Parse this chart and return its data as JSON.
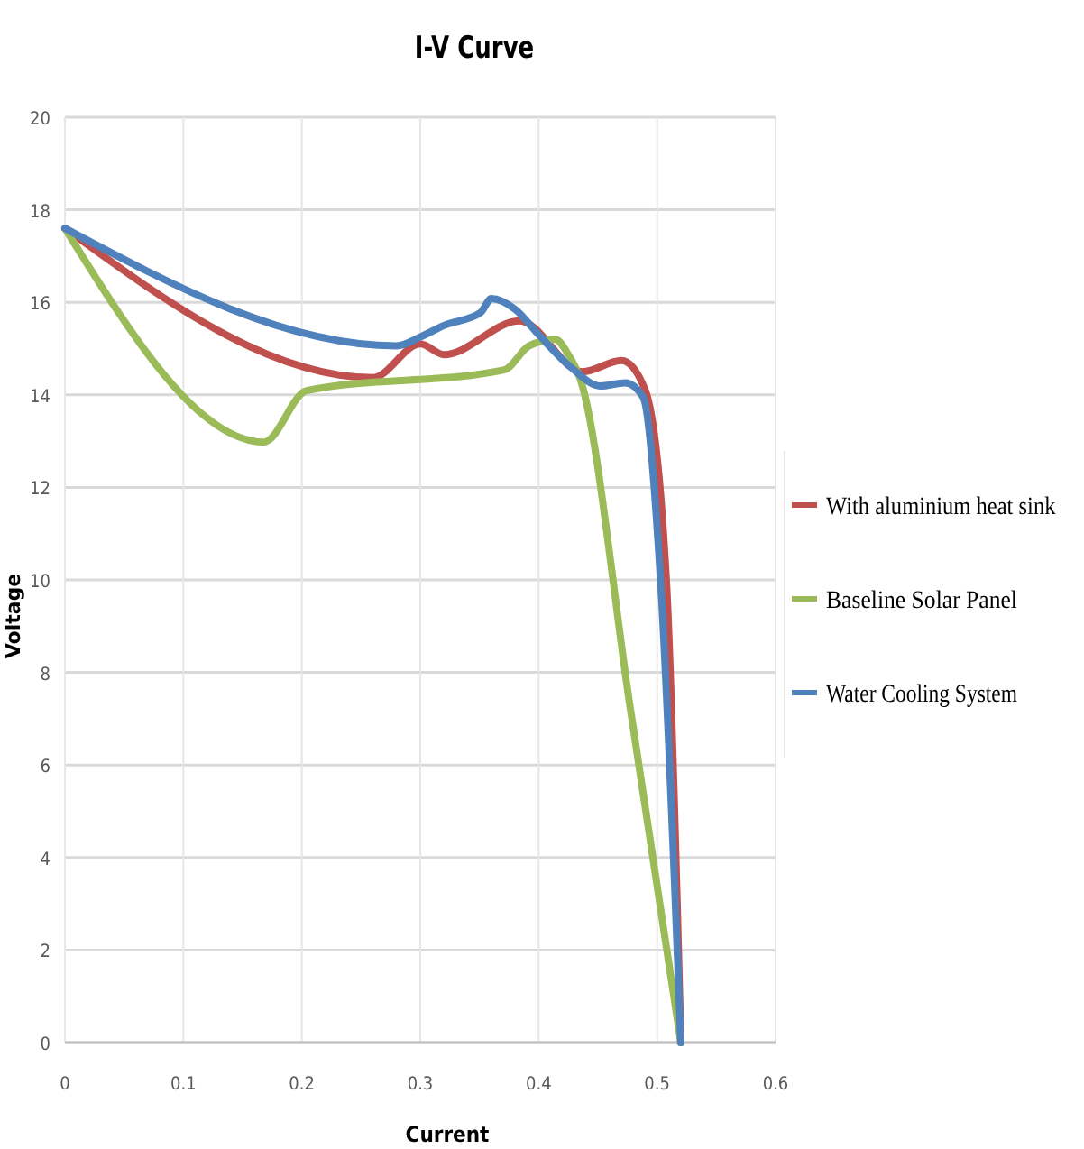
{
  "chart_data": {
    "type": "line",
    "title": "I-V Curve",
    "xlabel": "Current",
    "ylabel": "Voltage",
    "xlim": [
      0,
      0.6
    ],
    "xticks": [
      0,
      0.1,
      0.2,
      0.3,
      0.4,
      0.5,
      0.6
    ],
    "ylim": [
      0,
      20
    ],
    "yticks": [
      0,
      2,
      4,
      6,
      8,
      10,
      12,
      14,
      16,
      18,
      20
    ],
    "grid": true,
    "legend": "right",
    "marker": "none",
    "line_style": "solid",
    "series": [
      {
        "name": "With aluminium heat sink",
        "color": "#c0504d",
        "x": [
          0,
          0.26,
          0.3,
          0.32,
          0.384,
          0.437,
          0.47,
          0.49,
          0.508,
          0.52
        ],
        "values": [
          17.6,
          14.37,
          15.1,
          14.87,
          15.6,
          14.5,
          14.74,
          14.1,
          9.9,
          0
        ]
      },
      {
        "name": "Baseline Solar Panel",
        "color": "#9bbb59",
        "x": [
          0,
          0.168,
          0.204,
          0.371,
          0.392,
          0.414,
          0.425,
          0.435,
          0.4775,
          0.52
        ],
        "values": [
          17.6,
          12.98,
          14.09,
          14.54,
          15.06,
          15.2,
          14.87,
          14.35,
          7.2,
          0
        ]
      },
      {
        "name": "Water Cooling System",
        "color": "#4f81bd",
        "x": [
          0,
          0.28,
          0.3,
          0.32,
          0.351,
          0.36,
          0.38,
          0.4,
          0.427,
          0.452,
          0.473,
          0.488,
          0.503,
          0.52
        ],
        "values": [
          17.6,
          15.06,
          15.25,
          15.5,
          15.78,
          16.08,
          15.85,
          15.3,
          14.6,
          14.19,
          14.26,
          13.96,
          9.93,
          0
        ]
      }
    ]
  }
}
